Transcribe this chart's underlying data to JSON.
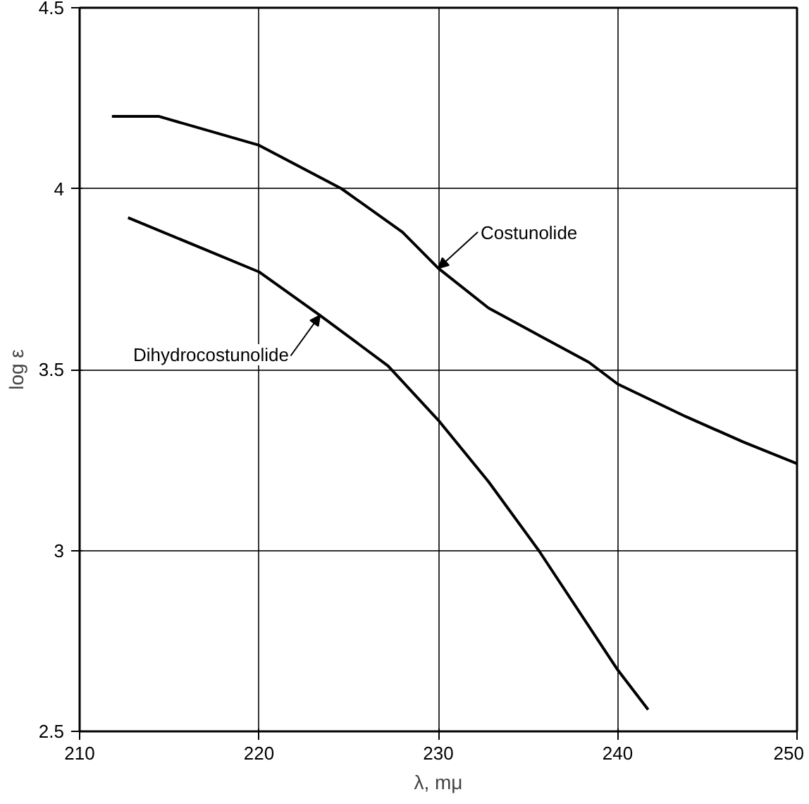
{
  "chart_data": {
    "type": "line",
    "xlabel": "λ, mμ",
    "ylabel": "log ε",
    "xlim": [
      210,
      250
    ],
    "ylim": [
      2.5,
      4.5
    ],
    "xticks": [
      210,
      220,
      230,
      240,
      250
    ],
    "yticks": [
      2.5,
      3.0,
      3.5,
      4.0,
      4.5
    ],
    "grid": true,
    "series": [
      {
        "name": "Costunolide",
        "color": "#000000",
        "x": [
          211.8,
          214.4,
          220,
          224.6,
          228,
          230,
          232.8,
          238.4,
          240,
          243.8,
          247,
          250
        ],
        "values": [
          4.2,
          4.2,
          4.12,
          4.0,
          3.88,
          3.78,
          3.67,
          3.52,
          3.46,
          3.37,
          3.3,
          3.24
        ]
      },
      {
        "name": "Dihydrocostunolide",
        "color": "#000000",
        "x": [
          212.7,
          220,
          223.4,
          227.2,
          230,
          232.8,
          235.6,
          240,
          241.7
        ],
        "values": [
          3.92,
          3.77,
          3.65,
          3.51,
          3.36,
          3.19,
          3.0,
          2.67,
          2.56
        ]
      }
    ]
  }
}
